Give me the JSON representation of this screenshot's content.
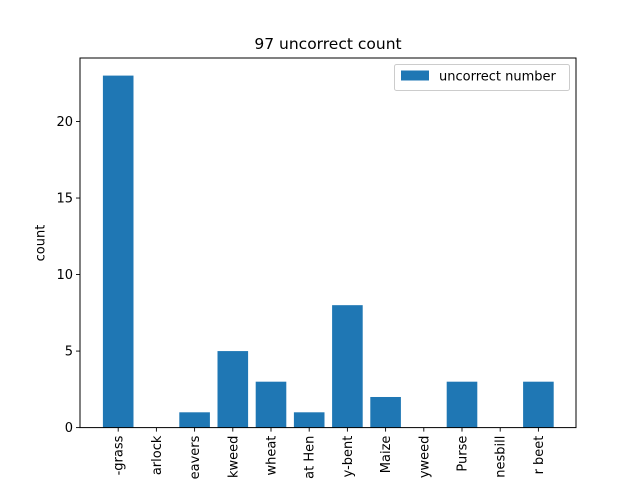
{
  "chart_data": {
    "type": "bar",
    "title": "97 uncorrect count",
    "xlabel": "",
    "ylabel": "count",
    "categories": [
      "-grass",
      "arlock",
      "eavers",
      "kweed",
      "wheat",
      "at Hen",
      "y-bent",
      "Maize",
      "yweed",
      "Purse",
      "nesbill",
      "r beet"
    ],
    "series": [
      {
        "name": "uncorrect number",
        "values": [
          23,
          0,
          1,
          5,
          3,
          1,
          8,
          2,
          0,
          3,
          0,
          3
        ],
        "color": "#1f77b4"
      }
    ],
    "ylim": [
      0,
      24.15
    ],
    "yticks": [
      0,
      5,
      10,
      15,
      20
    ],
    "grid": false,
    "legend_position": "top-right"
  }
}
